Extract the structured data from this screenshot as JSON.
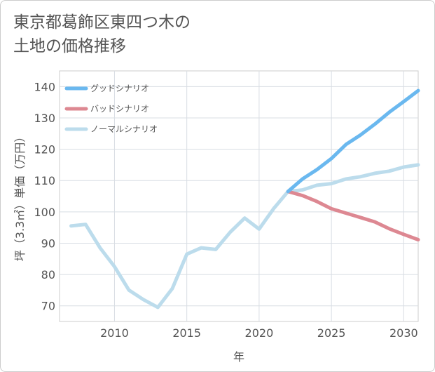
{
  "title_lines": [
    "東京都葛飾区東四つ木の",
    "土地の価格推移"
  ],
  "chart_data": {
    "type": "line",
    "xlabel": "年",
    "ylabel": "坪（3.3㎡）単価（万円）",
    "xlim": [
      2006.2,
      2031
    ],
    "ylim": [
      65,
      145
    ],
    "xticks": [
      2010,
      2015,
      2020,
      2025,
      2030
    ],
    "yticks": [
      70,
      80,
      90,
      100,
      110,
      120,
      130,
      140
    ],
    "grid": true,
    "legend_position": "top-left",
    "series": [
      {
        "name": "グッドシナリオ",
        "color": "#6ab8ef",
        "x": [
          2022,
          2023,
          2024,
          2025,
          2026,
          2027,
          2028,
          2029,
          2030,
          2031
        ],
        "y": [
          106.5,
          110.5,
          113.5,
          117,
          121.5,
          124.5,
          128,
          131.8,
          135.2,
          138.7
        ]
      },
      {
        "name": "バッドシナリオ",
        "color": "#dd8892",
        "x": [
          2022,
          2023,
          2024,
          2025,
          2026,
          2027,
          2028,
          2029,
          2030,
          2031
        ],
        "y": [
          106.5,
          105.2,
          103.3,
          101,
          99.6,
          98.2,
          96.8,
          94.6,
          92.8,
          91.1
        ]
      },
      {
        "name": "ノーマルシナリオ",
        "color": "#bcdcec",
        "x": [
          2007,
          2008,
          2009,
          2010,
          2011,
          2012,
          2013,
          2014,
          2015,
          2016,
          2017,
          2018,
          2019,
          2020,
          2021,
          2022,
          2023,
          2024,
          2025,
          2026,
          2027,
          2028,
          2029,
          2030,
          2031
        ],
        "y": [
          95.5,
          96,
          88.5,
          82.5,
          75,
          72,
          69.5,
          75.5,
          86.5,
          88.5,
          88,
          93.5,
          98,
          94.5,
          101,
          106.5,
          107,
          108.5,
          109,
          110.5,
          111.2,
          112.3,
          113,
          114.3,
          115
        ]
      }
    ]
  }
}
